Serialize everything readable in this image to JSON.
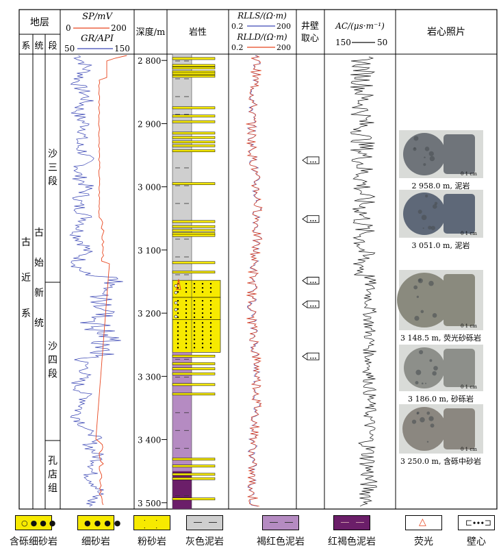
{
  "columns": {
    "strata": "地层",
    "system": "系",
    "series": "统",
    "member": "段",
    "sp_label": "SP/mV",
    "sp_scale_min": "0",
    "sp_scale_max": "200",
    "gr_label": "GR/API",
    "gr_scale_min": "50",
    "gr_scale_max": "150",
    "depth": "深度/m",
    "lithology": "岩性",
    "rlls_label": "RLLS/(Ω·m)",
    "rlls_min": "0.2",
    "rlls_max": "200",
    "rlld_label": "RLLD/(Ω·m)",
    "rlld_min": "0.2",
    "rlld_max": "200",
    "sidewall_core_line1": "井壁",
    "sidewall_core_line2": "取心",
    "ac_label": "AC/(μs·m⁻¹)",
    "ac_min": "150",
    "ac_max": "50",
    "core_photos": "岩心照片"
  },
  "stratigraphy": {
    "system": "古近系",
    "series": "古始新统",
    "members": [
      "沙三段",
      "沙四段",
      "孔店组"
    ]
  },
  "chart_data": {
    "type": "well_log",
    "depth_range_m": [
      2790,
      3510
    ],
    "depth_ticks_m": [
      2800,
      2900,
      3000,
      3100,
      3200,
      3300,
      3400,
      3500
    ],
    "depth_tick_labels": [
      "2 800",
      "2 900",
      "3 000",
      "3 100",
      "3 200",
      "3 300",
      "3 400",
      "3 500"
    ],
    "curves": [
      {
        "name": "SP",
        "unit": "mV",
        "range": [
          0,
          200
        ],
        "color": "#e8441c"
      },
      {
        "name": "GR",
        "unit": "API",
        "range": [
          50,
          150
        ],
        "color": "#3a46b4"
      },
      {
        "name": "RLLS",
        "unit": "Ω·m",
        "range": [
          0.2,
          200
        ],
        "color": "#3a46b4"
      },
      {
        "name": "RLLD",
        "unit": "Ω·m",
        "range": [
          0.2,
          200
        ],
        "color": "#e8441c"
      },
      {
        "name": "AC",
        "unit": "μs/m",
        "range": [
          150,
          50
        ],
        "color": "#111111"
      }
    ],
    "member_boundaries_m": [
      3148,
      3399
    ],
    "sidewall_cores_m": [
      2958,
      3051,
      3148.5,
      3186,
      3250
    ],
    "fluorescence_core_m": 3148.5,
    "lithology_intervals": [
      {
        "top": 2790,
        "base": 3148,
        "lith": "gray_mudstone"
      },
      {
        "top": 3148,
        "base": 3175,
        "lith": "pebbly_fine_sandstone"
      },
      {
        "top": 3175,
        "base": 3210,
        "lith": "pebbly_fine_sandstone"
      },
      {
        "top": 3210,
        "base": 3262,
        "lith": "fine_sandstone"
      },
      {
        "top": 3262,
        "base": 3450,
        "lith": "maroon_mudstone"
      },
      {
        "top": 3450,
        "base": 3510,
        "lith": "red_brown_mudstone"
      }
    ],
    "thin_siltstone_beds_m": [
      2797,
      2808,
      2812,
      2818,
      2821,
      2825,
      2875,
      2888,
      2897,
      2915,
      2922,
      2929,
      2935,
      2943,
      2995,
      3055,
      3063,
      3069,
      3074,
      3077,
      3120,
      3135,
      3268,
      3280,
      3288,
      3296,
      3313,
      3328,
      3431,
      3442,
      3455,
      3462,
      3494
    ]
  },
  "core_photos": [
    {
      "depth_m": 2958,
      "caption": "2 958.0 m, 泥岩",
      "scale": "0   1 cm",
      "tone": "#6f747a"
    },
    {
      "depth_m": 3051,
      "caption": "3 051.0 m, 泥岩",
      "scale": "0   1 cm",
      "tone": "#5e6878"
    },
    {
      "depth_m": 3148.5,
      "caption": "3 148.5 m, 荧光砂砾岩",
      "scale": "0   1 cm",
      "tone": "#8a8a7e"
    },
    {
      "depth_m": 3186,
      "caption": "3 186.0 m, 砂砾岩",
      "scale": "0   1 cm",
      "tone": "#8d8f8a"
    },
    {
      "depth_m": 3250,
      "caption": "3 250.0 m, 含砾中砂岩",
      "scale": "0   1 cm",
      "tone": "#8b8780"
    }
  ],
  "legend": [
    {
      "key": "pebbly_fine_sandstone",
      "label": "含砾细砂岩"
    },
    {
      "key": "fine_sandstone",
      "label": "细砂岩"
    },
    {
      "key": "siltstone",
      "label": "粉砂岩"
    },
    {
      "key": "gray_mudstone",
      "label": "灰色泥岩"
    },
    {
      "key": "maroon_mudstone",
      "label": "褐红色泥岩"
    },
    {
      "key": "red_brown_mudstone",
      "label": "红褐色泥岩"
    },
    {
      "key": "fluorescence",
      "label": "荧光"
    },
    {
      "key": "sidewall_core",
      "label": "壁心"
    }
  ],
  "colors": {
    "gray_mudstone": "#cfcfcf",
    "maroon_mudstone": "#b58bc2",
    "red_brown_mudstone": "#6b1e69",
    "sandstone": "#f7ea00",
    "sp_curve": "#e8441c",
    "gr_curve": "#3a46b4"
  }
}
